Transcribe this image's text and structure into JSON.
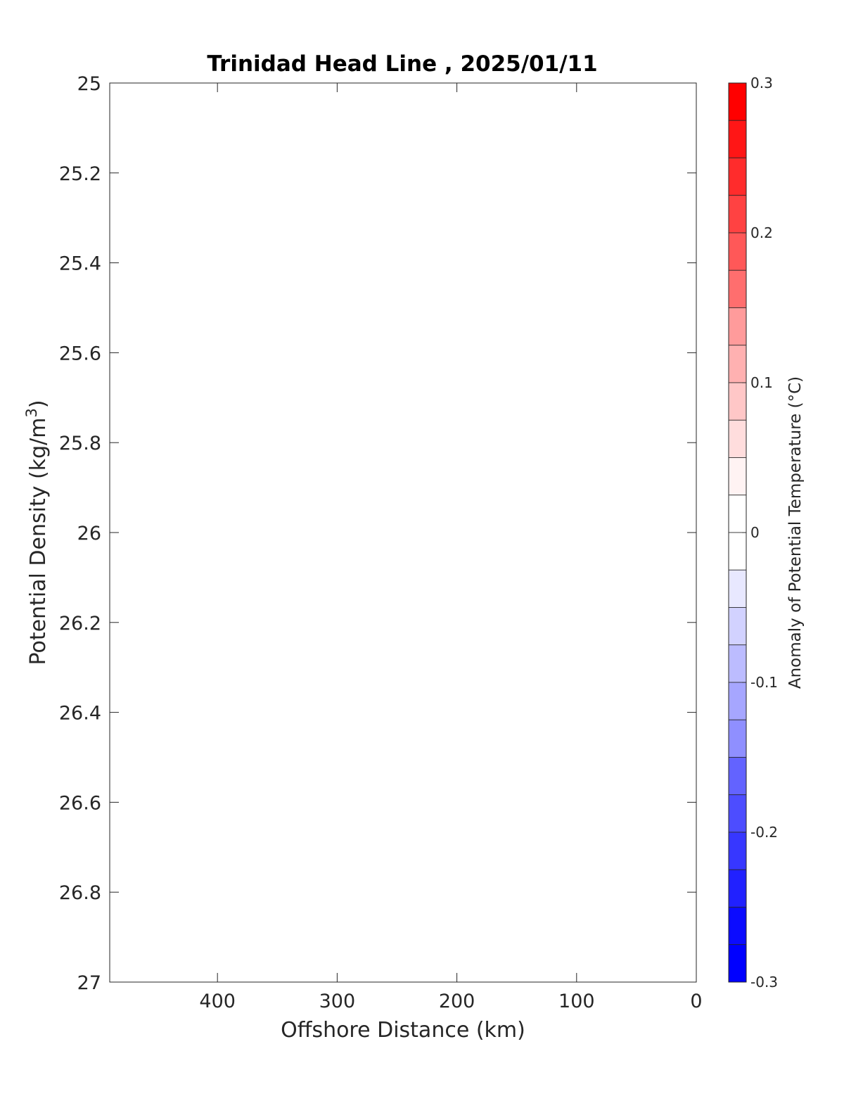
{
  "chart_data": {
    "type": "heatmap",
    "title": "Trinidad Head Line , 2025/01/11",
    "xlabel": "Offshore Distance (km)",
    "ylabel": "Potential Density (kg/m",
    "ylabel_superscript": "3",
    "ylabel_suffix": ")",
    "xlim": [
      490,
      0
    ],
    "ylim": [
      25,
      27
    ],
    "y_reversed": true,
    "x_reversed": true,
    "xticks": [
      400,
      300,
      200,
      100,
      0
    ],
    "xtick_labels": [
      "400",
      "300",
      "200",
      "100",
      "0"
    ],
    "yticks": [
      25,
      25.2,
      25.4,
      25.6,
      25.8,
      26,
      26.2,
      26.4,
      26.6,
      26.8,
      27
    ],
    "ytick_labels": [
      "25",
      "25.2",
      "25.4",
      "25.6",
      "25.8",
      "26",
      "26.2",
      "26.4",
      "26.6",
      "26.8",
      "27"
    ],
    "grid": false,
    "values": [],
    "colorbar": {
      "label": "Anomaly of Potential Temperature (°C)",
      "range": [
        -0.3,
        0.3
      ],
      "ticks": [
        0.3,
        0.2,
        0.1,
        0,
        -0.1,
        -0.2,
        -0.3
      ],
      "tick_labels": [
        "0.3",
        "0.2",
        "0.1",
        "0",
        "-0.1",
        "-0.2",
        "-0.3"
      ],
      "levels": 24,
      "colors": [
        "#ff0000",
        "#ff1616",
        "#ff2c2c",
        "#ff4242",
        "#ff5858",
        "#ff6e6e",
        "#ff8484",
        "#ff9b9b",
        "#ffb1b1",
        "#ffc7c7",
        "#ffdddd",
        "#fff3f3",
        "#ffffff",
        "#ffffff",
        "#e8e8ff",
        "#d2d2ff",
        "#bcbcff",
        "#a6a6ff",
        "#8f8fff",
        "#7979ff",
        "#6363ff",
        "#4d4dff",
        "#3737ff",
        "#2121ff",
        "#0b0bff",
        "#0000ff"
      ]
    }
  }
}
